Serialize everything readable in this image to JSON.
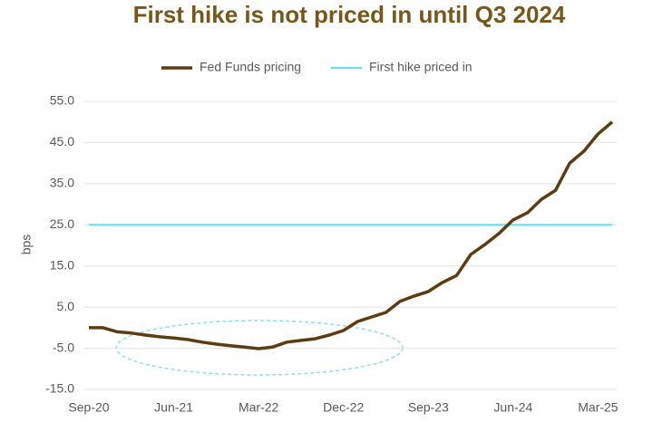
{
  "chart_data": {
    "type": "line",
    "title": "First hike is not priced in until Q3 2024",
    "y_label": "bps",
    "categories": [
      "Sep-20",
      null,
      null,
      null,
      null,
      null,
      "Jun-21",
      null,
      null,
      null,
      null,
      null,
      "Mar-22",
      null,
      null,
      null,
      null,
      null,
      "Dec-22",
      null,
      null,
      null,
      null,
      null,
      "Sep-23",
      null,
      null,
      null,
      null,
      null,
      "Jun-24",
      null,
      null,
      null,
      null,
      null,
      "Mar-25",
      null
    ],
    "series": [
      {
        "name": "Fed Funds pricing",
        "color": "#5c3d10",
        "width": 3.5,
        "values": [
          0.0,
          0.0,
          -1.0,
          -1.3,
          -1.8,
          -2.2,
          -2.5,
          -2.9,
          -3.5,
          -4.0,
          -4.4,
          -4.7,
          -5.1,
          -4.7,
          -3.5,
          -3.1,
          -2.7,
          -1.8,
          -0.7,
          1.5,
          2.6,
          3.7,
          6.4,
          7.7,
          8.8,
          11.0,
          12.7,
          17.8,
          20.2,
          22.9,
          26.2,
          27.9,
          31.2,
          33.4,
          40.0,
          42.9,
          47.1,
          50.0
        ]
      },
      {
        "name": "First hike priced in",
        "color": "#5ee3f0",
        "width": 2,
        "values": [
          25,
          25,
          25,
          25,
          25,
          25,
          25,
          25,
          25,
          25,
          25,
          25,
          25,
          25,
          25,
          25,
          25,
          25,
          25,
          25,
          25,
          25,
          25,
          25,
          25,
          25,
          25,
          25,
          25,
          25,
          25,
          25,
          25,
          25,
          25,
          25,
          25,
          25
        ]
      }
    ],
    "ylim": [
      -15,
      55
    ],
    "yticks": [
      {
        "value": -15,
        "label": "-15.0"
      },
      {
        "value": -5,
        "label": "-5.0"
      },
      {
        "value": 5,
        "label": "5.0"
      },
      {
        "value": 15,
        "label": "15.0"
      },
      {
        "value": 25,
        "label": "25.0"
      },
      {
        "value": 35,
        "label": "35.0"
      },
      {
        "value": 45,
        "label": "45.0"
      },
      {
        "value": 55,
        "label": "55.0"
      }
    ],
    "grid": true
  }
}
